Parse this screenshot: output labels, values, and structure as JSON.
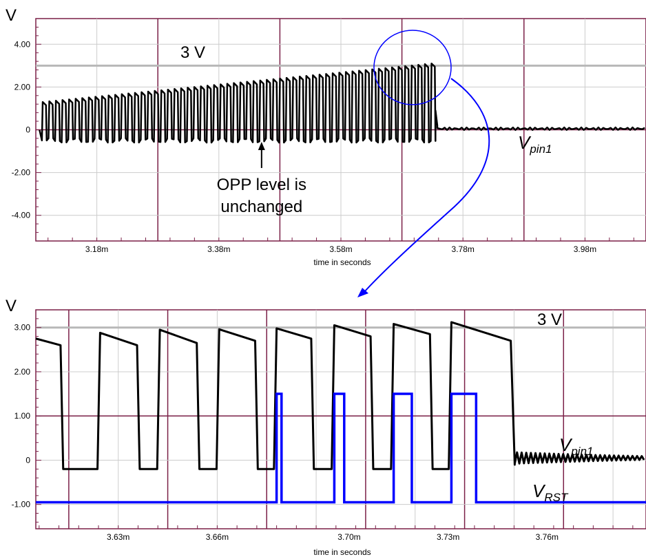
{
  "chart_data": [
    {
      "type": "line",
      "unit_label": "V",
      "xlabel": "time in seconds",
      "xlim": [
        3.08,
        4.08
      ],
      "ylim": [
        -5.2,
        5.2
      ],
      "x_ticks": [
        {
          "value": 3.18,
          "label": "3.18m"
        },
        {
          "value": 3.38,
          "label": "3.38m"
        },
        {
          "value": 3.58,
          "label": "3.58m"
        },
        {
          "value": 3.78,
          "label": "3.78m"
        },
        {
          "value": 3.98,
          "label": "3.98m"
        }
      ],
      "y_ticks": [
        {
          "value": 4,
          "label": "4.00"
        },
        {
          "value": 2,
          "label": "2.00"
        },
        {
          "value": 0,
          "label": "0"
        },
        {
          "value": -2,
          "label": "-2.00"
        },
        {
          "value": -4,
          "label": "-4.00"
        }
      ],
      "grid": true,
      "reference_line": {
        "value": 3,
        "label": "3 V"
      },
      "series": [
        {
          "name": "V pin1",
          "label_main": "V",
          "label_sub": "pin1",
          "color": "#000000",
          "burst_start": 3.09,
          "burst_end": 3.735,
          "pulse_period": 0.0108,
          "peak_start": 1.3,
          "peak_end": 3.1,
          "trough": -0.5,
          "settle_value": 0.05
        }
      ],
      "annotations": [
        {
          "text_lines": [
            "OPP level is",
            "unchanged"
          ],
          "arrow_to_x": 3.45,
          "arrow_to_y": -0.5
        }
      ]
    },
    {
      "type": "line",
      "unit_label": "V",
      "xlabel": "time in seconds",
      "xlim": [
        3.605,
        3.79
      ],
      "ylim": [
        -1.55,
        3.4
      ],
      "x_ticks": [
        {
          "value": 3.63,
          "label": "3.63m"
        },
        {
          "value": 3.66,
          "label": "3.66m"
        },
        {
          "value": 3.7,
          "label": "3.70m"
        },
        {
          "value": 3.73,
          "label": "3.73m"
        },
        {
          "value": 3.76,
          "label": "3.76m"
        }
      ],
      "y_ticks": [
        {
          "value": 3,
          "label": "3.00"
        },
        {
          "value": 2,
          "label": "2.00"
        },
        {
          "value": 1,
          "label": "1.00"
        },
        {
          "value": 0,
          "label": "0"
        },
        {
          "value": -1,
          "label": "-1.00"
        }
      ],
      "grid": true,
      "reference_line": {
        "value": 3,
        "label": "3 V"
      },
      "series": [
        {
          "name": "V pin1",
          "label_main": "V",
          "label_sub": "pin1",
          "color": "#000000",
          "peaks": [
            {
              "x_start": 3.605,
              "y_start": 2.75,
              "x_end": 3.6125,
              "y_end": 2.6
            },
            {
              "x_start": 3.6245,
              "y_start": 2.88,
              "x_end": 3.6357,
              "y_end": 2.6
            },
            {
              "x_start": 3.6426,
              "y_start": 2.95,
              "x_end": 3.6538,
              "y_end": 2.65
            },
            {
              "x_start": 3.6606,
              "y_start": 2.96,
              "x_end": 3.6715,
              "y_end": 2.7
            },
            {
              "x_start": 3.678,
              "y_start": 2.98,
              "x_end": 3.6885,
              "y_end": 2.75
            },
            {
              "x_start": 3.6955,
              "y_start": 3.05,
              "x_end": 3.7065,
              "y_end": 2.8
            },
            {
              "x_start": 3.7135,
              "y_start": 3.08,
              "x_end": 3.7245,
              "y_end": 2.85
            },
            {
              "x_start": 3.731,
              "y_start": 3.12,
              "x_end": 3.749,
              "y_end": 2.7
            }
          ],
          "trough": -0.2,
          "settle_value": 0.05
        },
        {
          "name": "V RST",
          "label_main": "V",
          "label_sub": "RST",
          "color": "#0000ff",
          "baseline": -0.95,
          "high": 1.5,
          "pulses": [
            {
              "x_start": 3.678,
              "x_end": 3.6795
            },
            {
              "x_start": 3.6955,
              "x_end": 3.6985
            },
            {
              "x_start": 3.7135,
              "x_end": 3.719
            },
            {
              "x_start": 3.731,
              "x_end": 3.7385
            }
          ]
        }
      ]
    }
  ]
}
